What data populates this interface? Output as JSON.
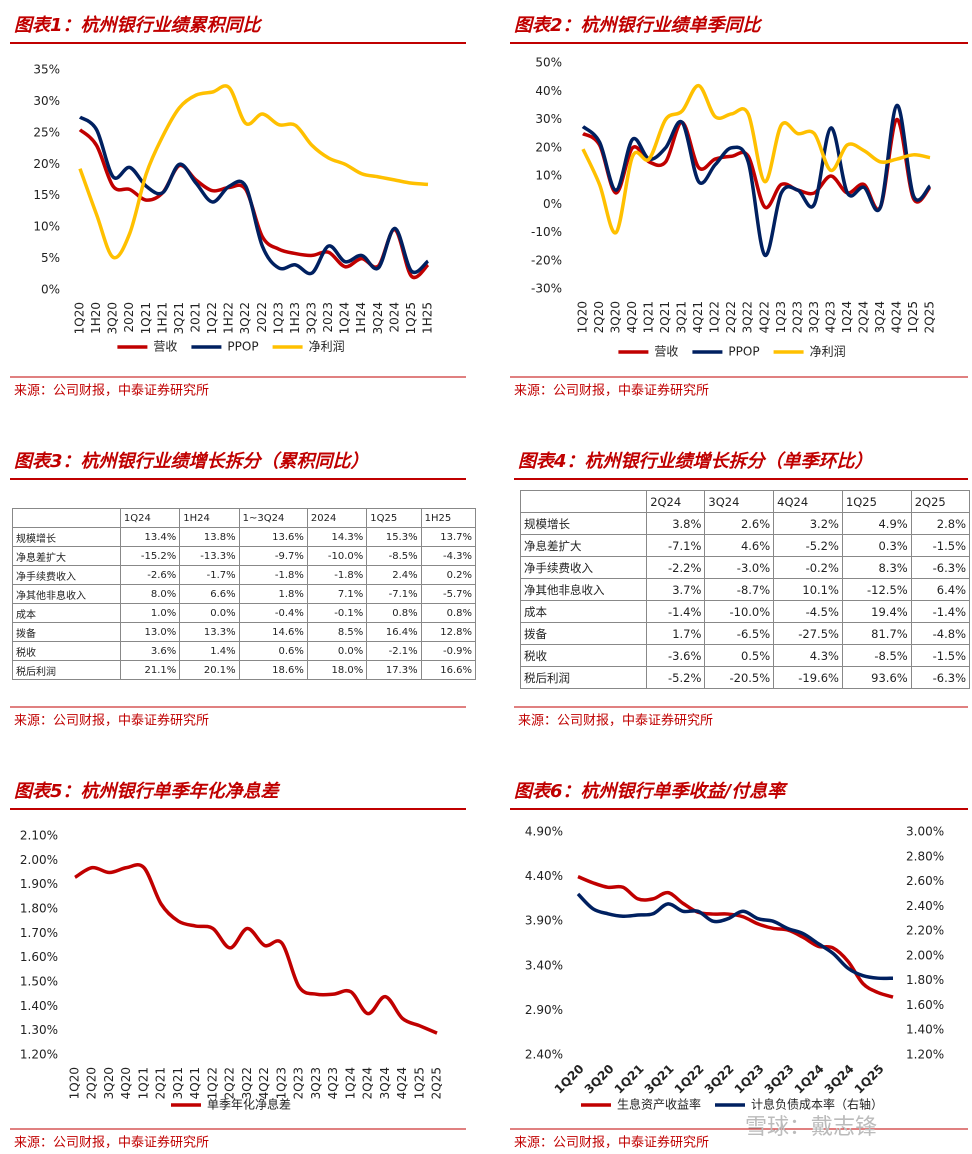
{
  "chart_data": [
    {
      "type": "line",
      "title": "图表1：杭州银行业绩累积同比",
      "source": "来源：公司财报，中泰证券研究所",
      "legend": "bottom",
      "categories": [
        "1Q20",
        "1H20",
        "3Q20",
        "2020",
        "1Q21",
        "1H21",
        "3Q21",
        "2021",
        "1Q22",
        "1H22",
        "3Q22",
        "2022",
        "1Q23",
        "1H23",
        "3Q23",
        "2023",
        "1Q24",
        "1H24",
        "3Q24",
        "2024",
        "1Q25",
        "1H25"
      ],
      "series": [
        {
          "name": "营收",
          "color": "#c00000",
          "values": [
            25.5,
            23,
            16.5,
            16,
            14.3,
            15.5,
            19.8,
            17.5,
            15.8,
            16.3,
            16,
            8.5,
            6.5,
            5.8,
            5.5,
            6,
            3.7,
            5,
            3.8,
            9.6,
            2.2,
            4
          ]
        },
        {
          "name": "PPOP",
          "color": "#002060",
          "values": [
            27.5,
            25.5,
            18,
            19.5,
            16.5,
            15.5,
            20,
            17,
            14,
            16.5,
            16.5,
            7,
            3.5,
            4,
            2.7,
            7,
            4.5,
            5.5,
            3.5,
            9.8,
            3,
            4.6
          ]
        },
        {
          "name": "净利润",
          "color": "#ffc000",
          "values": [
            19.3,
            12,
            5.2,
            9,
            18.5,
            24.5,
            29,
            31,
            31.5,
            32.2,
            26.5,
            28,
            26.3,
            26.2,
            23,
            21,
            20,
            18.5,
            18,
            17.5,
            17,
            16.8
          ]
        }
      ],
      "ylim": [
        0,
        35
      ],
      "yticks": [
        {
          "value": 0,
          "label": "0%"
        },
        {
          "value": 5,
          "label": "5%"
        },
        {
          "value": 10,
          "label": "10%"
        },
        {
          "value": 15,
          "label": "15%"
        },
        {
          "value": 20,
          "label": "20%"
        },
        {
          "value": 25,
          "label": "25%"
        },
        {
          "value": 30,
          "label": "30%"
        },
        {
          "value": 35,
          "label": "35%"
        }
      ]
    },
    {
      "type": "line",
      "title": "图表2：杭州银行业绩单季同比",
      "source": "来源：公司财报，中泰证券研究所",
      "legend": "bottom",
      "categories": [
        "1Q20",
        "2Q20",
        "3Q20",
        "4Q20",
        "1Q21",
        "2Q21",
        "3Q21",
        "4Q21",
        "1Q22",
        "2Q22",
        "3Q22",
        "4Q22",
        "1Q23",
        "2Q23",
        "3Q23",
        "4Q23",
        "1Q24",
        "2Q24",
        "3Q24",
        "4Q24",
        "1Q25",
        "2Q25"
      ],
      "series": [
        {
          "name": "营收",
          "color": "#c00000",
          "values": [
            25,
            21,
            4,
            20,
            15,
            15,
            29,
            13,
            16,
            17,
            17,
            -1,
            7,
            5,
            4,
            10,
            4,
            7,
            -1,
            30,
            2,
            6
          ]
        },
        {
          "name": "PPOP",
          "color": "#002060",
          "values": [
            27.5,
            22,
            5,
            23,
            16,
            20,
            29,
            8,
            14,
            20,
            15,
            -18,
            4,
            5,
            0,
            27,
            4,
            6,
            -1,
            35,
            3,
            6.5
          ]
        },
        {
          "name": "净利润",
          "color": "#ffc000",
          "values": [
            19.5,
            7,
            -10,
            17,
            16,
            30,
            33,
            42,
            31,
            32,
            32,
            8,
            28,
            25,
            25,
            12,
            21,
            19,
            15,
            16,
            17.5,
            16.5
          ]
        }
      ],
      "ylim": [
        -30,
        50
      ],
      "yticks": [
        {
          "value": -30,
          "label": "-30%"
        },
        {
          "value": -20,
          "label": "-20%"
        },
        {
          "value": -10,
          "label": "-10%"
        },
        {
          "value": 0,
          "label": "0%"
        },
        {
          "value": 10,
          "label": "10%"
        },
        {
          "value": 20,
          "label": "20%"
        },
        {
          "value": 30,
          "label": "30%"
        },
        {
          "value": 40,
          "label": "40%"
        },
        {
          "value": 50,
          "label": "50%"
        }
      ]
    },
    {
      "type": "line",
      "title": "图表5：杭州银行单季年化净息差",
      "source": "来源：公司财报，中泰证券研究所",
      "legend": "bottom",
      "categories": [
        "1Q20",
        "2Q20",
        "3Q20",
        "4Q20",
        "1Q21",
        "2Q21",
        "3Q21",
        "4Q21",
        "1Q22",
        "2Q22",
        "3Q22",
        "4Q22",
        "1Q23",
        "2Q23",
        "3Q23",
        "4Q23",
        "1Q24",
        "2Q24",
        "3Q24",
        "4Q24",
        "1Q25",
        "2Q25"
      ],
      "series": [
        {
          "name": "单季年化净息差",
          "color": "#c00000",
          "values": [
            1.93,
            1.97,
            1.95,
            1.97,
            1.97,
            1.82,
            1.75,
            1.73,
            1.72,
            1.64,
            1.72,
            1.65,
            1.66,
            1.48,
            1.45,
            1.45,
            1.46,
            1.37,
            1.44,
            1.35,
            1.32,
            1.29
          ]
        }
      ],
      "ylim": [
        1.2,
        2.1
      ],
      "yticks": [
        {
          "value": 1.2,
          "label": "1.20%"
        },
        {
          "value": 1.3,
          "label": "1.30%"
        },
        {
          "value": 1.4,
          "label": "1.40%"
        },
        {
          "value": 1.5,
          "label": "1.50%"
        },
        {
          "value": 1.6,
          "label": "1.60%"
        },
        {
          "value": 1.7,
          "label": "1.70%"
        },
        {
          "value": 1.8,
          "label": "1.80%"
        },
        {
          "value": 1.9,
          "label": "1.90%"
        },
        {
          "value": 2.0,
          "label": "2.00%"
        },
        {
          "value": 2.1,
          "label": "2.10%"
        }
      ]
    },
    {
      "type": "line",
      "title": "图表6：杭州银行单季收益/付息率",
      "source": "来源：公司财报，中泰证券研究所",
      "legend": "bottom",
      "categories": [
        "1Q20",
        null,
        "3Q20",
        null,
        "1Q21",
        null,
        "3Q21",
        null,
        "1Q22",
        null,
        "3Q22",
        null,
        "1Q23",
        null,
        "3Q23",
        null,
        "1Q24",
        null,
        "3Q24",
        null,
        "1Q25",
        null
      ],
      "series": [
        {
          "name": "生息资产收益率",
          "color": "#c00000",
          "values": [
            4.4,
            4.33,
            4.28,
            4.28,
            4.15,
            4.15,
            4.22,
            4.1,
            4.0,
            3.98,
            3.98,
            3.95,
            3.87,
            3.82,
            3.8,
            3.72,
            3.62,
            3.6,
            3.45,
            3.2,
            3.1,
            3.05
          ]
        },
        {
          "name": "计息负债成本率（右轴）",
          "color": "#002060",
          "axis": "y2",
          "values": [
            2.5,
            2.38,
            2.34,
            2.32,
            2.33,
            2.34,
            2.42,
            2.36,
            2.36,
            2.28,
            2.3,
            2.36,
            2.3,
            2.28,
            2.22,
            2.18,
            2.1,
            2.02,
            1.9,
            1.84,
            1.82,
            1.82
          ]
        }
      ],
      "ylim": [
        2.4,
        4.9
      ],
      "yticks": [
        {
          "value": 2.4,
          "label": "2.40%"
        },
        {
          "value": 2.9,
          "label": "2.90%"
        },
        {
          "value": 3.4,
          "label": "3.40%"
        },
        {
          "value": 3.9,
          "label": "3.90%"
        },
        {
          "value": 4.4,
          "label": "4.40%"
        },
        {
          "value": 4.9,
          "label": "4.90%"
        }
      ],
      "y2lim": [
        1.2,
        3.0
      ],
      "y2ticks": [
        {
          "value": 1.2,
          "label": "1.20%"
        },
        {
          "value": 1.4,
          "label": "1.40%"
        },
        {
          "value": 1.6,
          "label": "1.60%"
        },
        {
          "value": 1.8,
          "label": "1.80%"
        },
        {
          "value": 2.0,
          "label": "2.00%"
        },
        {
          "value": 2.2,
          "label": "2.20%"
        },
        {
          "value": 2.4,
          "label": "2.40%"
        },
        {
          "value": 2.6,
          "label": "2.60%"
        },
        {
          "value": 2.8,
          "label": "2.80%"
        },
        {
          "value": 3.0,
          "label": "3.00%"
        }
      ]
    }
  ],
  "tables": [
    {
      "title": "图表3：杭州银行业绩增长拆分（累积同比）",
      "source": "来源：公司财报，中泰证券研究所",
      "columns": [
        "1Q24",
        "1H24",
        "1~3Q24",
        "2024",
        "1Q25",
        "1H25"
      ],
      "rows": [
        {
          "label": "规模增长",
          "values": [
            "13.4%",
            "13.8%",
            "13.6%",
            "14.3%",
            "15.3%",
            "13.7%"
          ]
        },
        {
          "label": "净息差扩大",
          "values": [
            "-15.2%",
            "-13.3%",
            "-9.7%",
            "-10.0%",
            "-8.5%",
            "-4.3%"
          ]
        },
        {
          "label": "净手续费收入",
          "values": [
            "-2.6%",
            "-1.7%",
            "-1.8%",
            "-1.8%",
            "2.4%",
            "0.2%"
          ]
        },
        {
          "label": "净其他非息收入",
          "values": [
            "8.0%",
            "6.6%",
            "1.8%",
            "7.1%",
            "-7.1%",
            "-5.7%"
          ]
        },
        {
          "label": "成本",
          "values": [
            "1.0%",
            "0.0%",
            "-0.4%",
            "-0.1%",
            "0.8%",
            "0.8%"
          ]
        },
        {
          "label": "拨备",
          "values": [
            "13.0%",
            "13.3%",
            "14.6%",
            "8.5%",
            "16.4%",
            "12.8%"
          ]
        },
        {
          "label": "税收",
          "values": [
            "3.6%",
            "1.4%",
            "0.6%",
            "0.0%",
            "-2.1%",
            "-0.9%"
          ]
        },
        {
          "label": "税后利润",
          "values": [
            "21.1%",
            "20.1%",
            "18.6%",
            "18.0%",
            "17.3%",
            "16.6%"
          ]
        }
      ]
    },
    {
      "title": "图表4：杭州银行业绩增长拆分（单季环比）",
      "source": "来源：公司财报，中泰证券研究所",
      "columns": [
        "2Q24",
        "3Q24",
        "4Q24",
        "1Q25",
        "2Q25"
      ],
      "rows": [
        {
          "label": "规模增长",
          "values": [
            "3.8%",
            "2.6%",
            "3.2%",
            "4.9%",
            "2.8%"
          ]
        },
        {
          "label": "净息差扩大",
          "values": [
            "-7.1%",
            "4.6%",
            "-5.2%",
            "0.3%",
            "-1.5%"
          ]
        },
        {
          "label": "净手续费收入",
          "values": [
            "-2.2%",
            "-3.0%",
            "-0.2%",
            "8.3%",
            "-6.3%"
          ]
        },
        {
          "label": "净其他非息收入",
          "values": [
            "3.7%",
            "-8.7%",
            "10.1%",
            "-12.5%",
            "6.4%"
          ]
        },
        {
          "label": "成本",
          "values": [
            "-1.4%",
            "-10.0%",
            "-4.5%",
            "19.4%",
            "-1.4%"
          ]
        },
        {
          "label": "拨备",
          "values": [
            "1.7%",
            "-6.5%",
            "-27.5%",
            "81.7%",
            "-4.8%"
          ]
        },
        {
          "label": "税收",
          "values": [
            "-3.6%",
            "0.5%",
            "4.3%",
            "-8.5%",
            "-1.5%"
          ]
        },
        {
          "label": "税后利润",
          "values": [
            "-5.2%",
            "-20.5%",
            "-19.6%",
            "93.6%",
            "-6.3%"
          ]
        }
      ]
    }
  ],
  "watermark": "雪球：戴志锋"
}
